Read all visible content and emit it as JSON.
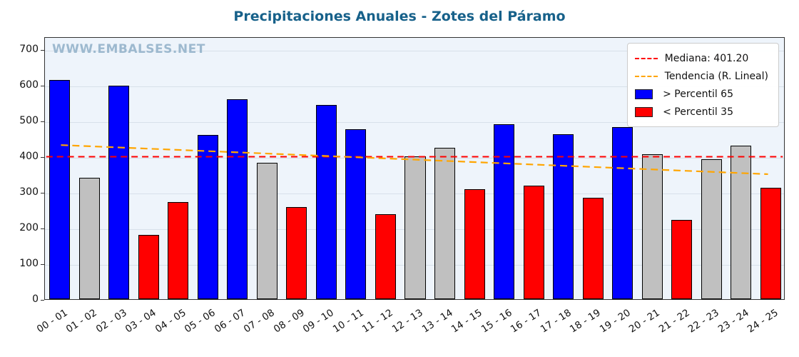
{
  "chart_data": {
    "type": "bar",
    "title": "Precipitaciones Anuales - Zotes del Páramo",
    "watermark": "WWW.EMBALSES.NET",
    "categories": [
      "00 - 01",
      "01 - 02",
      "02 - 03",
      "03 - 04",
      "04 - 05",
      "05 - 06",
      "06 - 07",
      "07 - 08",
      "08 - 09",
      "09 - 10",
      "10 - 11",
      "11 - 12",
      "12 - 13",
      "13 - 14",
      "14 - 15",
      "15 - 16",
      "16 - 17",
      "17 - 18",
      "18 - 19",
      "19 - 20",
      "20 - 21",
      "21 - 22",
      "22 - 23",
      "23 - 24",
      "24 - 25"
    ],
    "values": [
      615,
      340,
      598,
      180,
      272,
      460,
      560,
      382,
      258,
      545,
      476,
      238,
      400,
      425,
      308,
      490,
      318,
      463,
      285,
      483,
      407,
      222,
      393,
      430,
      313
    ],
    "bar_classes": [
      "blue",
      "gray",
      "blue",
      "red",
      "red",
      "blue",
      "blue",
      "gray",
      "red",
      "blue",
      "blue",
      "red",
      "gray",
      "gray",
      "red",
      "blue",
      "red",
      "blue",
      "red",
      "blue",
      "gray",
      "red",
      "gray",
      "gray",
      "red"
    ],
    "bar_colors": {
      "blue": "#0000ff",
      "red": "#ff0000",
      "gray": "#c0c0c0"
    },
    "median": 401.2,
    "median_color": "#ff0000",
    "trend_start": 434,
    "trend_end": 352,
    "trend_color": "#ffa500",
    "ylim": [
      0,
      736
    ],
    "yticks": [
      0,
      100,
      200,
      300,
      400,
      500,
      600,
      700
    ],
    "grid": "horizontal",
    "legend_position": "upper right",
    "legend": [
      {
        "swatch": "dashed-line",
        "color": "#ff0000",
        "label": "Mediana: 401.20"
      },
      {
        "swatch": "dashed-line",
        "color": "#ffa500",
        "label": "Tendencia (R. Lineal)"
      },
      {
        "swatch": "patch",
        "color": "#0000ff",
        "label": " > Percentil 65"
      },
      {
        "swatch": "patch",
        "color": "#ff0000",
        "label": " < Percentil 35"
      }
    ]
  }
}
